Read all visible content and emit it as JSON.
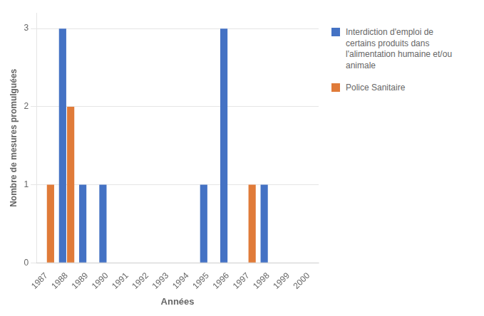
{
  "chart_data": {
    "type": "bar",
    "xlabel": "Années",
    "ylabel": "Nombre de mesures promulguées",
    "categories": [
      "1987",
      "1988",
      "1989",
      "1990",
      "1991",
      "1992",
      "1993",
      "1994",
      "1995",
      "1996",
      "1997",
      "1998",
      "1999",
      "2000"
    ],
    "series": [
      {
        "name": "Interdiction d'emploi de\ncertains produits dans\nl'alimentation humaine et/ou\nanimale",
        "color": "#4472C4",
        "values": [
          0,
          3,
          1,
          1,
          0,
          0,
          0,
          0,
          1,
          3,
          0,
          1,
          0,
          0
        ]
      },
      {
        "name": "Police Sanitaire",
        "color": "#E07B39",
        "values": [
          1,
          2,
          0,
          0,
          0,
          0,
          0,
          0,
          0,
          0,
          1,
          0,
          0,
          0
        ]
      }
    ],
    "ylim": [
      0,
      3.2
    ],
    "yticks": [
      0,
      1,
      2,
      3
    ],
    "grid": true,
    "legend": "right"
  }
}
